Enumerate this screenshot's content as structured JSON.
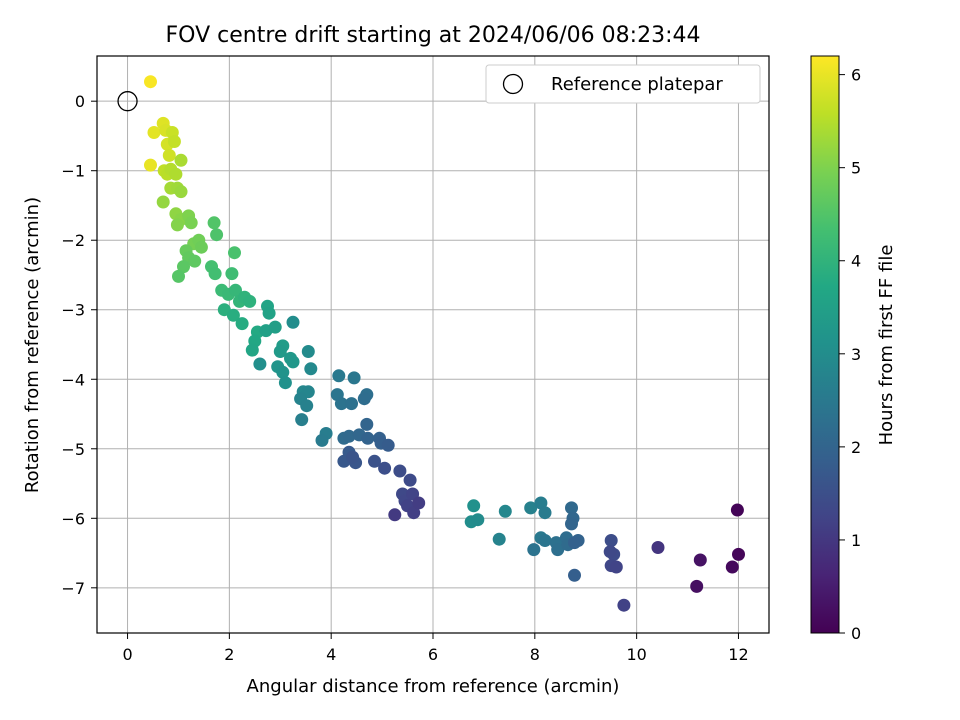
{
  "chart_data": {
    "type": "scatter",
    "title": "FOV centre drift starting at 2024/06/06 08:23:44",
    "xlabel": "Angular distance from reference (arcmin)",
    "ylabel": "Rotation from reference (arcmin)",
    "xlim": [
      -0.6,
      12.6
    ],
    "ylim": [
      -7.65,
      0.65
    ],
    "xticks": [
      0,
      2,
      4,
      6,
      8,
      10,
      12
    ],
    "yticks": [
      0,
      -1,
      -2,
      -3,
      -4,
      -5,
      -6,
      -7
    ],
    "grid": true,
    "legend": {
      "label": "Reference platepar",
      "placement": "top-right",
      "marker": "open-circle"
    },
    "reference_point": {
      "x": 0,
      "y": 0
    },
    "colorbar": {
      "label": "Hours from first FF file",
      "colormap": "viridis",
      "range": [
        0,
        6.2
      ],
      "ticks": [
        0,
        1,
        2,
        3,
        4,
        5,
        6
      ]
    },
    "points": [
      [
        0.45,
        0.28,
        6.15
      ],
      [
        0.45,
        -0.92,
        6.0
      ],
      [
        0.52,
        -0.45,
        5.95
      ],
      [
        0.7,
        -0.32,
        5.9
      ],
      [
        0.75,
        -0.42,
        5.85
      ],
      [
        0.78,
        -0.62,
        5.8
      ],
      [
        0.82,
        -0.78,
        5.75
      ],
      [
        0.88,
        -0.45,
        5.7
      ],
      [
        0.92,
        -0.58,
        5.65
      ],
      [
        0.72,
        -1.0,
        5.6
      ],
      [
        0.78,
        -1.05,
        5.55
      ],
      [
        0.85,
        -0.98,
        5.5
      ],
      [
        0.95,
        -1.05,
        5.45
      ],
      [
        1.05,
        -0.85,
        5.4
      ],
      [
        0.85,
        -1.25,
        5.35
      ],
      [
        0.98,
        -1.25,
        5.3
      ],
      [
        1.05,
        -1.3,
        5.25
      ],
      [
        0.7,
        -1.45,
        5.2
      ],
      [
        0.95,
        -1.62,
        5.15
      ],
      [
        1.05,
        -1.7,
        5.1
      ],
      [
        0.98,
        -1.78,
        5.05
      ],
      [
        1.2,
        -1.65,
        5.0
      ],
      [
        1.25,
        -1.75,
        4.95
      ],
      [
        1.3,
        -2.05,
        4.9
      ],
      [
        1.4,
        -2.0,
        4.85
      ],
      [
        1.45,
        -2.1,
        4.8
      ],
      [
        1.15,
        -2.15,
        4.75
      ],
      [
        1.2,
        -2.25,
        4.7
      ],
      [
        1.32,
        -2.3,
        4.65
      ],
      [
        1.1,
        -2.38,
        4.6
      ],
      [
        1.0,
        -2.52,
        4.55
      ],
      [
        1.7,
        -1.75,
        4.5
      ],
      [
        1.75,
        -1.92,
        4.45
      ],
      [
        2.1,
        -2.18,
        4.4
      ],
      [
        1.65,
        -2.38,
        4.35
      ],
      [
        1.72,
        -2.48,
        4.3
      ],
      [
        2.05,
        -2.48,
        4.25
      ],
      [
        1.85,
        -2.72,
        4.2
      ],
      [
        1.98,
        -2.78,
        4.15
      ],
      [
        2.12,
        -2.72,
        4.1
      ],
      [
        2.2,
        -2.88,
        4.05
      ],
      [
        2.3,
        -2.82,
        4.0
      ],
      [
        2.4,
        -2.88,
        3.95
      ],
      [
        1.9,
        -3.0,
        3.9
      ],
      [
        2.08,
        -3.08,
        3.85
      ],
      [
        2.25,
        -3.2,
        3.8
      ],
      [
        2.55,
        -3.32,
        3.75
      ],
      [
        2.5,
        -3.45,
        3.7
      ],
      [
        2.45,
        -3.58,
        3.65
      ],
      [
        2.75,
        -2.95,
        3.6
      ],
      [
        2.78,
        -3.05,
        3.55
      ],
      [
        2.72,
        -3.3,
        3.5
      ],
      [
        2.9,
        -3.25,
        3.45
      ],
      [
        3.05,
        -3.52,
        3.4
      ],
      [
        3.0,
        -3.6,
        3.35
      ],
      [
        3.2,
        -3.7,
        3.3
      ],
      [
        3.25,
        -3.75,
        3.25
      ],
      [
        2.95,
        -3.82,
        3.2
      ],
      [
        3.05,
        -3.9,
        3.15
      ],
      [
        3.1,
        -4.05,
        3.1
      ],
      [
        2.6,
        -3.78,
        3.05
      ],
      [
        3.25,
        -3.18,
        3.0
      ],
      [
        3.55,
        -3.6,
        2.95
      ],
      [
        3.6,
        -3.85,
        2.9
      ],
      [
        3.45,
        -4.18,
        2.85
      ],
      [
        3.55,
        -4.18,
        2.8
      ],
      [
        3.4,
        -4.28,
        2.75
      ],
      [
        3.52,
        -4.38,
        2.7
      ],
      [
        3.42,
        -4.58,
        2.65
      ],
      [
        3.9,
        -4.78,
        2.6
      ],
      [
        3.82,
        -4.88,
        2.55
      ],
      [
        4.15,
        -3.95,
        2.5
      ],
      [
        4.45,
        -3.98,
        2.45
      ],
      [
        4.12,
        -4.22,
        2.4
      ],
      [
        4.2,
        -4.35,
        2.35
      ],
      [
        4.4,
        -4.35,
        2.3
      ],
      [
        4.7,
        -4.22,
        2.25
      ],
      [
        4.65,
        -4.28,
        2.2
      ],
      [
        4.25,
        -4.85,
        2.15
      ],
      [
        4.35,
        -4.82,
        2.1
      ],
      [
        4.55,
        -4.8,
        2.05
      ],
      [
        4.7,
        -4.65,
        2.0
      ],
      [
        4.72,
        -4.85,
        1.95
      ],
      [
        4.95,
        -4.85,
        1.9
      ],
      [
        4.98,
        -4.92,
        1.85
      ],
      [
        5.12,
        -4.95,
        1.8
      ],
      [
        4.35,
        -5.05,
        1.75
      ],
      [
        4.25,
        -5.18,
        1.7
      ],
      [
        4.48,
        -5.2,
        1.65
      ],
      [
        4.42,
        -5.12,
        1.6
      ],
      [
        4.85,
        -5.18,
        1.55
      ],
      [
        5.05,
        -5.28,
        1.5
      ],
      [
        5.35,
        -5.32,
        1.45
      ],
      [
        5.55,
        -5.45,
        1.4
      ],
      [
        5.4,
        -5.65,
        1.35
      ],
      [
        5.45,
        -5.75,
        1.3
      ],
      [
        5.6,
        -5.65,
        1.25
      ],
      [
        5.5,
        -5.82,
        1.2
      ],
      [
        5.62,
        -5.92,
        1.15
      ],
      [
        5.72,
        -5.78,
        1.1
      ],
      [
        5.25,
        -5.95,
        1.05
      ],
      [
        6.8,
        -5.82,
        3.1
      ],
      [
        6.75,
        -6.05,
        3.0
      ],
      [
        6.88,
        -6.02,
        2.95
      ],
      [
        7.42,
        -5.9,
        2.85
      ],
      [
        7.3,
        -6.3,
        2.75
      ],
      [
        7.92,
        -5.85,
        2.7
      ],
      [
        8.12,
        -5.78,
        2.6
      ],
      [
        8.2,
        -5.92,
        2.55
      ],
      [
        8.12,
        -6.28,
        2.5
      ],
      [
        8.2,
        -6.32,
        2.4
      ],
      [
        7.98,
        -6.45,
        2.35
      ],
      [
        8.42,
        -6.35,
        2.3
      ],
      [
        8.45,
        -6.45,
        2.25
      ],
      [
        8.62,
        -6.28,
        2.2
      ],
      [
        8.65,
        -6.38,
        2.15
      ],
      [
        8.72,
        -5.85,
        2.1
      ],
      [
        8.75,
        -6.0,
        2.05
      ],
      [
        8.72,
        -6.08,
        2.0
      ],
      [
        8.85,
        -6.32,
        1.95
      ],
      [
        8.78,
        -6.35,
        1.9
      ],
      [
        8.78,
        -6.82,
        1.85
      ],
      [
        9.5,
        -6.32,
        1.45
      ],
      [
        9.55,
        -6.52,
        1.4
      ],
      [
        9.48,
        -6.48,
        1.35
      ],
      [
        9.5,
        -6.68,
        1.3
      ],
      [
        9.6,
        -6.7,
        1.25
      ],
      [
        9.75,
        -7.25,
        1.2
      ],
      [
        10.42,
        -6.42,
        0.95
      ],
      [
        11.25,
        -6.6,
        0.3
      ],
      [
        11.18,
        -6.98,
        0.25
      ],
      [
        11.88,
        -6.7,
        0.15
      ],
      [
        12.0,
        -6.52,
        0.1
      ],
      [
        11.98,
        -5.88,
        0.05
      ]
    ]
  }
}
